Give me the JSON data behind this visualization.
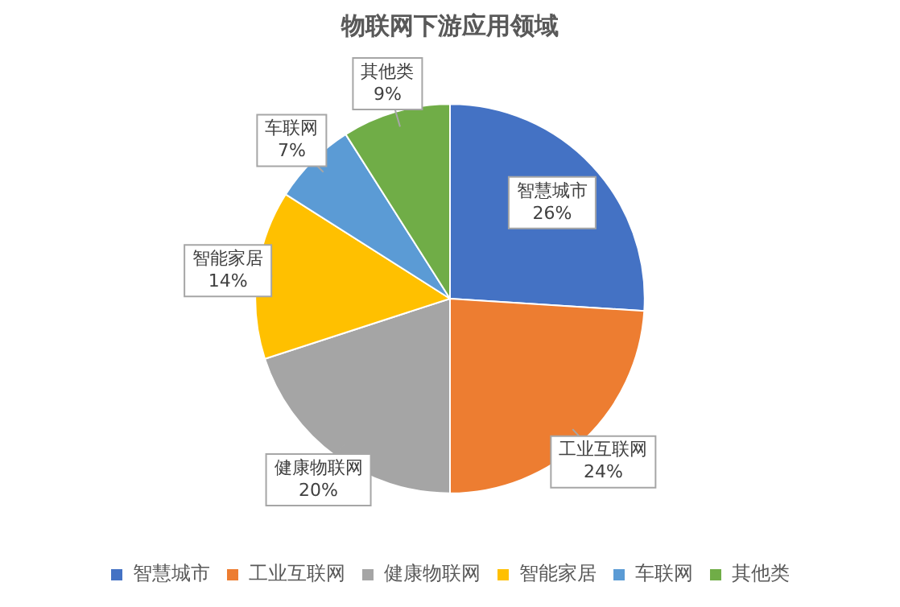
{
  "chart_data": {
    "type": "pie",
    "title": "物联网下游应用领域",
    "categories": [
      "智慧城市",
      "工业互联网",
      "健康物联网",
      "智能家居",
      "车联网",
      "其他类"
    ],
    "values": [
      26,
      24,
      20,
      14,
      7,
      9
    ],
    "value_labels": [
      "26%",
      "24%",
      "20%",
      "14%",
      "7%",
      "9%"
    ],
    "colors": [
      "#4472c4",
      "#ed7d31",
      "#a5a5a5",
      "#ffc000",
      "#5b9bd5",
      "#70ad47"
    ],
    "legend": "bottom"
  }
}
